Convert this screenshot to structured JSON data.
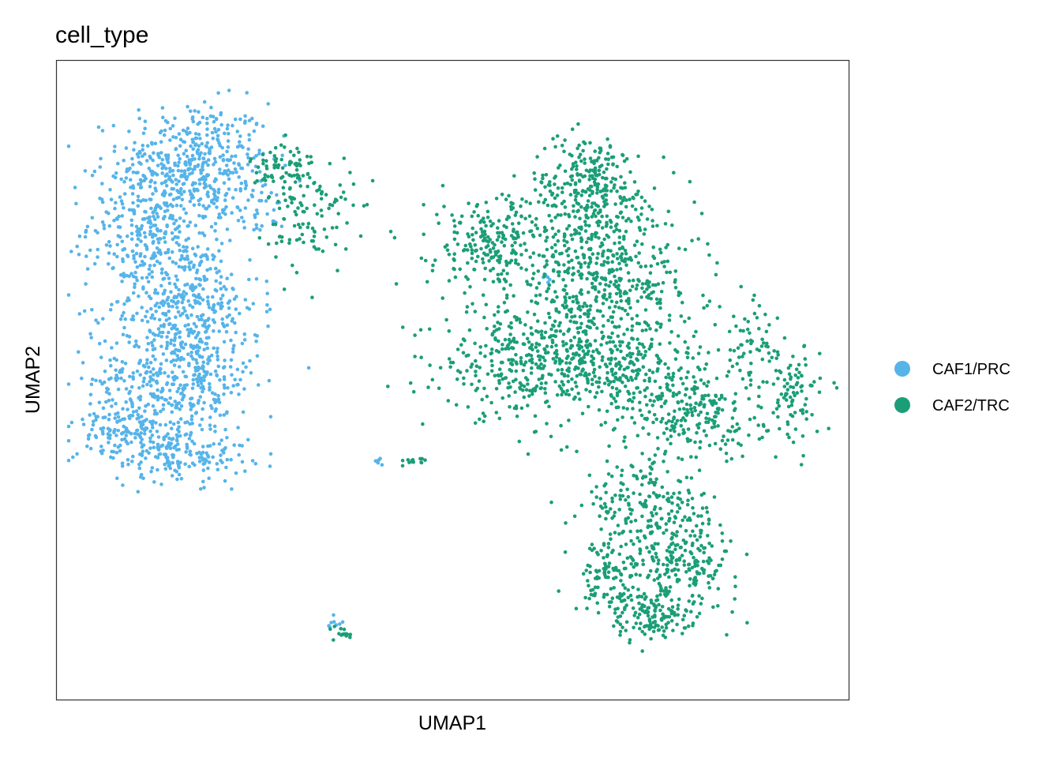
{
  "chart_data": {
    "type": "scatter",
    "title": "cell_type",
    "xlabel": "UMAP1",
    "ylabel": "UMAP2",
    "xlim": [
      -10,
      10
    ],
    "ylim": [
      -10,
      10
    ],
    "ticks": false,
    "grid": false,
    "legend": "right",
    "series": [
      {
        "name": "CAF1/PRC",
        "color": "#56B4E9",
        "clusters": [
          {
            "cx": -6.5,
            "cy": 6.9,
            "sx": 0.95,
            "sy": 0.9,
            "n": 380
          },
          {
            "cx": -7.5,
            "cy": 4.9,
            "sx": 0.85,
            "sy": 1.0,
            "n": 320
          },
          {
            "cx": -6.8,
            "cy": 2.4,
            "sx": 0.95,
            "sy": 1.1,
            "n": 380
          },
          {
            "cx": -7.0,
            "cy": 0.0,
            "sx": 1.05,
            "sy": 0.9,
            "n": 380
          },
          {
            "cx": -8.2,
            "cy": -1.5,
            "sx": 0.65,
            "sy": 0.55,
            "n": 130
          },
          {
            "cx": -6.9,
            "cy": -2.3,
            "sx": 0.9,
            "sy": 0.45,
            "n": 170
          },
          {
            "cx": -5.1,
            "cy": 5.4,
            "sx": 0.45,
            "sy": 0.4,
            "n": 40
          },
          {
            "cx": -1.9,
            "cy": -2.55,
            "sx": 0.08,
            "sy": 0.06,
            "n": 6
          },
          {
            "cx": -3.0,
            "cy": -7.5,
            "sx": 0.1,
            "sy": 0.12,
            "n": 8
          },
          {
            "cx": 2.4,
            "cy": 3.2,
            "sx": 0.06,
            "sy": 0.06,
            "n": 5
          }
        ]
      },
      {
        "name": "CAF2/TRC",
        "color": "#1B9E77",
        "clusters": [
          {
            "cx": -4.3,
            "cy": 6.6,
            "sx": 0.4,
            "sy": 0.5,
            "n": 70
          },
          {
            "cx": -3.6,
            "cy": 5.2,
            "sx": 0.55,
            "sy": 0.9,
            "n": 110
          },
          {
            "cx": 3.5,
            "cy": 6.0,
            "sx": 0.75,
            "sy": 0.85,
            "n": 280
          },
          {
            "cx": 1.0,
            "cy": 4.3,
            "sx": 0.8,
            "sy": 0.75,
            "n": 230
          },
          {
            "cx": 3.8,
            "cy": 3.1,
            "sx": 1.2,
            "sy": 1.1,
            "n": 480
          },
          {
            "cx": 1.7,
            "cy": 0.6,
            "sx": 1.0,
            "sy": 0.85,
            "n": 320
          },
          {
            "cx": 4.3,
            "cy": 0.3,
            "sx": 1.1,
            "sy": 0.9,
            "n": 330
          },
          {
            "cx": 6.2,
            "cy": -1.2,
            "sx": 0.85,
            "sy": 0.7,
            "n": 200
          },
          {
            "cx": 7.5,
            "cy": 1.0,
            "sx": 0.35,
            "sy": 0.7,
            "n": 60
          },
          {
            "cx": 8.6,
            "cy": -0.5,
            "sx": 0.35,
            "sy": 0.75,
            "n": 90
          },
          {
            "cx": 4.8,
            "cy": -4.0,
            "sx": 0.75,
            "sy": 0.7,
            "n": 170
          },
          {
            "cx": 5.8,
            "cy": -5.6,
            "sx": 0.7,
            "sy": 0.8,
            "n": 230
          },
          {
            "cx": 4.0,
            "cy": -6.2,
            "sx": 0.45,
            "sy": 0.55,
            "n": 110
          },
          {
            "cx": 5.0,
            "cy": -7.4,
            "sx": 0.5,
            "sy": 0.4,
            "n": 120
          },
          {
            "cx": -0.9,
            "cy": -2.55,
            "sx": 0.18,
            "sy": 0.07,
            "n": 14
          },
          {
            "cx": -2.7,
            "cy": -7.9,
            "sx": 0.18,
            "sy": 0.1,
            "n": 16
          }
        ]
      }
    ]
  }
}
